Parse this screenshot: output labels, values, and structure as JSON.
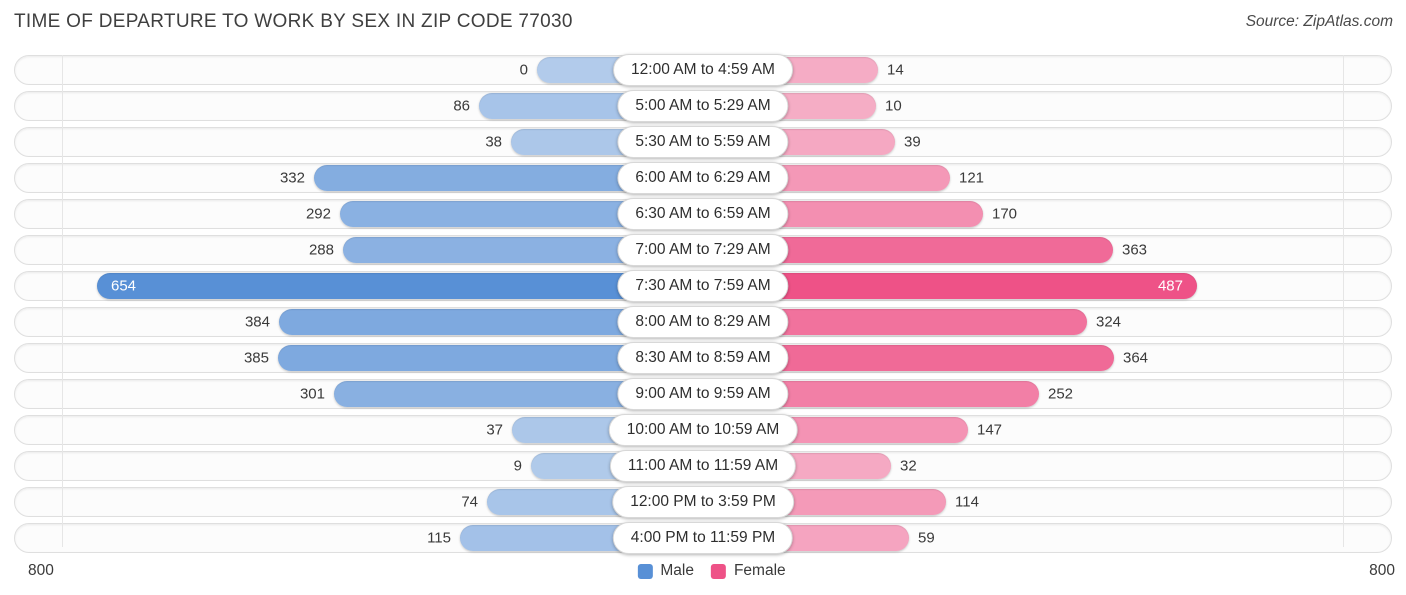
{
  "header": {
    "title": "TIME OF DEPARTURE TO WORK BY SEX IN ZIP CODE 77030",
    "source": "Source: ZipAtlas.com"
  },
  "legend": {
    "male": "Male",
    "female": "Female"
  },
  "axis": {
    "left": "800",
    "right": "800"
  },
  "colors": {
    "male": "#5890d6",
    "female": "#ee5287",
    "track_border": "#dfdfdf",
    "gridline": "#e6e6e6"
  },
  "chart_data": {
    "type": "bar",
    "orientation": "diverging-horizontal",
    "title": "TIME OF DEPARTURE TO WORK BY SEX IN ZIP CODE 77030",
    "categories": [
      "12:00 AM to 4:59 AM",
      "5:00 AM to 5:29 AM",
      "5:30 AM to 5:59 AM",
      "6:00 AM to 6:29 AM",
      "6:30 AM to 6:59 AM",
      "7:00 AM to 7:29 AM",
      "7:30 AM to 7:59 AM",
      "8:00 AM to 8:29 AM",
      "8:30 AM to 8:59 AM",
      "9:00 AM to 9:59 AM",
      "10:00 AM to 10:59 AM",
      "11:00 AM to 11:59 AM",
      "12:00 PM to 3:59 PM",
      "4:00 PM to 11:59 PM"
    ],
    "series": [
      {
        "name": "Male",
        "color": "#5890d6",
        "values": [
          0,
          86,
          38,
          332,
          292,
          288,
          654,
          384,
          385,
          301,
          37,
          9,
          74,
          115
        ]
      },
      {
        "name": "Female",
        "color": "#ee5287",
        "values": [
          14,
          10,
          39,
          121,
          170,
          363,
          487,
          324,
          364,
          252,
          147,
          32,
          114,
          59
        ]
      }
    ],
    "xlim": [
      0,
      800
    ],
    "axis_tick_labels": [
      "800",
      "800"
    ],
    "legend_position": "bottom-center",
    "grid": "single-vertical-line-each-side"
  }
}
